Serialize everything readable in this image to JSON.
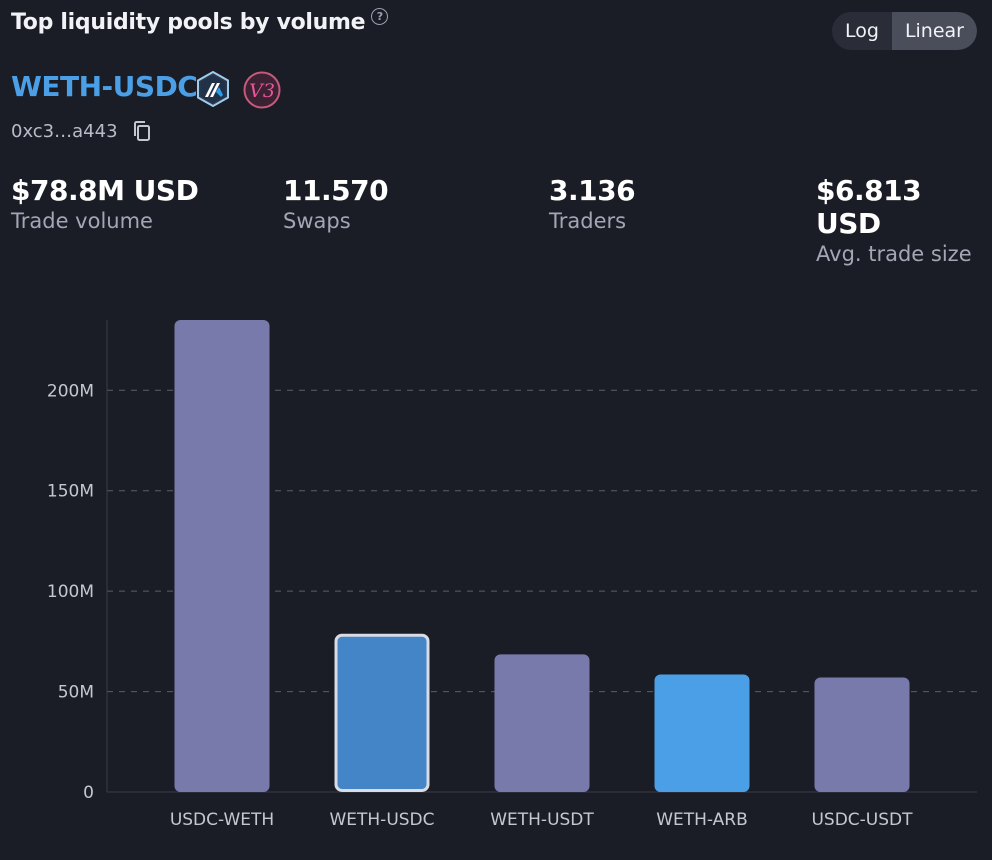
{
  "header": {
    "title": "Top liquidity pools by volume",
    "help_icon": "question-circle-icon",
    "scale_options": [
      "Log",
      "Linear"
    ],
    "active_scale": "Linear"
  },
  "pool": {
    "name": "WETH-USDC",
    "network_icon": "arbitrum-icon",
    "version_icon": "uniswap-v3-icon",
    "version_label": "V3",
    "address": "0xc3…a443",
    "copy_icon": "copy-icon"
  },
  "stats": [
    {
      "value": "$78.8M USD",
      "label": "Trade volume"
    },
    {
      "value": "11.570",
      "label": "Swaps"
    },
    {
      "value": "3.136",
      "label": "Traders"
    },
    {
      "value": "$6.813 USD",
      "label": "Avg. trade size"
    }
  ],
  "colors": {
    "bar_default": "#787aab",
    "bar_selected": "#4485c7",
    "bar_highlight": "#4b9fe6",
    "accent": "#4b9fe6"
  },
  "chart_data": {
    "type": "bar",
    "categories": [
      "USDC-WETH",
      "WETH-USDC",
      "WETH-USDT",
      "WETH-ARB",
      "USDC-USDT"
    ],
    "values": [
      235000000,
      78800000,
      68500000,
      58500000,
      57000000
    ],
    "selected_index": 1,
    "highlight_index": 3,
    "y_ticks": [
      0,
      50000000,
      100000000,
      150000000,
      200000000
    ],
    "y_tick_labels": [
      "0",
      "50M",
      "100M",
      "150M",
      "200M"
    ],
    "ylim": [
      0,
      235000000
    ],
    "grid": true,
    "y_scale": "linear"
  }
}
